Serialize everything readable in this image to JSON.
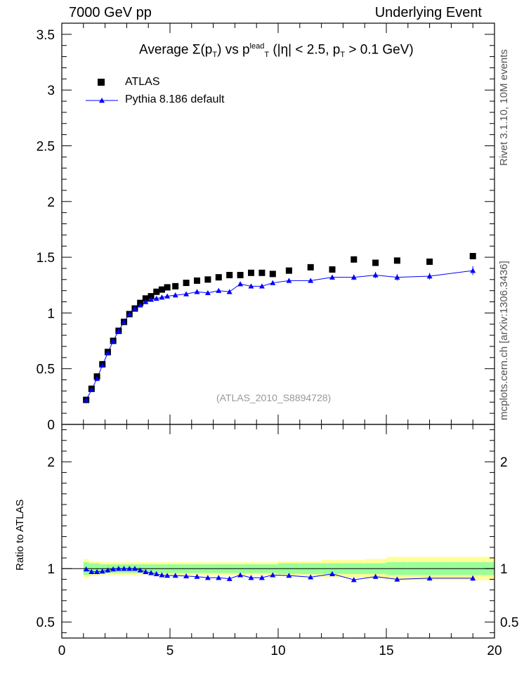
{
  "header": {
    "left": "7000 GeV pp",
    "right": "Underlying Event"
  },
  "side": {
    "rivet": "Rivet 3.1.10,  10M events",
    "mcplots": "mcplots.cern.ch [arXiv:1306.3436]"
  },
  "title": {
    "prefix": "Average ",
    "sigma": "Σ",
    "p1": "(p",
    "p1sub": "T",
    "p2": ") vs p",
    "p2sup": "lead",
    "p2sub": "T",
    "p3": " (|η| < 2.5, p",
    "p3sub": "T",
    "p4": " > 0.1 GeV)"
  },
  "legend": {
    "atlas": "ATLAS",
    "pythia": "Pythia 8.186 default"
  },
  "analysis_id": "(ATLAS_2010_S8894728)",
  "ratio_ylabel": "Ratio to ATLAS",
  "colors": {
    "data": "#000000",
    "mc": "#0000ff",
    "band_stat": "#99ff99",
    "band_total": "#ffff99"
  },
  "chart_data": [
    {
      "type": "scatter",
      "xlim": [
        0,
        20
      ],
      "ylim": [
        0,
        3.6
      ],
      "yticks": [
        0.5,
        1,
        1.5,
        2,
        2.5,
        3,
        3.5
      ],
      "ytick_labels": [
        "0.5",
        "1",
        "1.5",
        "2",
        "2.5",
        "3",
        "3.5"
      ],
      "ylabel_zero": "0",
      "series": [
        {
          "name": "ATLAS",
          "marker": "square",
          "x": [
            1.125,
            1.375,
            1.625,
            1.875,
            2.125,
            2.375,
            2.625,
            2.875,
            3.125,
            3.375,
            3.625,
            3.875,
            4.125,
            4.375,
            4.625,
            4.875,
            5.25,
            5.75,
            6.25,
            6.75,
            7.25,
            7.75,
            8.25,
            8.75,
            9.25,
            9.75,
            10.5,
            11.5,
            12.5,
            13.5,
            14.5,
            15.5,
            17.0,
            19.0
          ],
          "y": [
            0.22,
            0.32,
            0.43,
            0.54,
            0.65,
            0.75,
            0.84,
            0.92,
            0.99,
            1.04,
            1.09,
            1.13,
            1.15,
            1.19,
            1.21,
            1.23,
            1.24,
            1.27,
            1.29,
            1.3,
            1.32,
            1.34,
            1.34,
            1.36,
            1.36,
            1.35,
            1.38,
            1.41,
            1.39,
            1.48,
            1.45,
            1.47,
            1.46,
            1.51
          ]
        },
        {
          "name": "Pythia 8.186 default",
          "marker": "triangle",
          "x": [
            1.125,
            1.375,
            1.625,
            1.875,
            2.125,
            2.375,
            2.625,
            2.875,
            3.125,
            3.375,
            3.625,
            3.875,
            4.125,
            4.375,
            4.625,
            4.875,
            5.25,
            5.75,
            6.25,
            6.75,
            7.25,
            7.75,
            8.25,
            8.75,
            9.25,
            9.75,
            10.5,
            11.5,
            12.5,
            13.5,
            14.5,
            15.5,
            17.0,
            19.0
          ],
          "y": [
            0.22,
            0.31,
            0.41,
            0.53,
            0.64,
            0.75,
            0.84,
            0.92,
            0.99,
            1.04,
            1.07,
            1.1,
            1.12,
            1.13,
            1.14,
            1.15,
            1.16,
            1.17,
            1.19,
            1.18,
            1.2,
            1.19,
            1.26,
            1.24,
            1.24,
            1.27,
            1.29,
            1.29,
            1.32,
            1.32,
            1.34,
            1.32,
            1.33,
            1.38
          ],
          "err": [
            0.005,
            0.005,
            0.005,
            0.006,
            0.006,
            0.007,
            0.007,
            0.007,
            0.008,
            0.008,
            0.008,
            0.009,
            0.009,
            0.01,
            0.01,
            0.01,
            0.01,
            0.012,
            0.012,
            0.013,
            0.013,
            0.014,
            0.015,
            0.015,
            0.016,
            0.016,
            0.017,
            0.018,
            0.02,
            0.025,
            0.028,
            0.03,
            0.03,
            0.04
          ]
        }
      ]
    },
    {
      "type": "line",
      "xlim": [
        0,
        20
      ],
      "ylim": [
        0.35,
        2.35
      ],
      "ylabel": "Ratio to ATLAS",
      "yticks": [
        0.5,
        1,
        2
      ],
      "ytick_labels": [
        "0.5",
        "1",
        "2"
      ],
      "xticks": [
        0,
        5,
        10,
        15,
        20
      ],
      "xtick_labels": [
        "0",
        "5",
        "10",
        "15",
        "20"
      ],
      "bands": {
        "x_edges": [
          1.0,
          1.25,
          1.5,
          1.75,
          2.0,
          2.25,
          2.5,
          2.75,
          3.0,
          3.25,
          3.5,
          3.75,
          4.0,
          4.25,
          4.5,
          4.75,
          5.0,
          5.5,
          6.0,
          6.5,
          7.0,
          7.5,
          8.0,
          8.5,
          9.0,
          9.5,
          10.0,
          11.0,
          12.0,
          13.0,
          14.0,
          15.0,
          16.0,
          18.0,
          20.0
        ],
        "stat_half": [
          0.06,
          0.05,
          0.05,
          0.04,
          0.04,
          0.04,
          0.04,
          0.04,
          0.04,
          0.04,
          0.04,
          0.04,
          0.04,
          0.04,
          0.04,
          0.04,
          0.04,
          0.04,
          0.04,
          0.04,
          0.04,
          0.04,
          0.04,
          0.04,
          0.04,
          0.04,
          0.05,
          0.05,
          0.05,
          0.05,
          0.05,
          0.06,
          0.06,
          0.06
        ],
        "total_half": [
          0.09,
          0.07,
          0.07,
          0.06,
          0.06,
          0.06,
          0.06,
          0.06,
          0.06,
          0.06,
          0.06,
          0.06,
          0.06,
          0.06,
          0.06,
          0.06,
          0.06,
          0.06,
          0.06,
          0.06,
          0.06,
          0.06,
          0.06,
          0.06,
          0.06,
          0.06,
          0.07,
          0.07,
          0.08,
          0.08,
          0.09,
          0.11,
          0.11,
          0.11
        ]
      },
      "series": [
        {
          "name": "Pythia 8.186 default",
          "x": [
            1.125,
            1.375,
            1.625,
            1.875,
            2.125,
            2.375,
            2.625,
            2.875,
            3.125,
            3.375,
            3.625,
            3.875,
            4.125,
            4.375,
            4.625,
            4.875,
            5.25,
            5.75,
            6.25,
            6.75,
            7.25,
            7.75,
            8.25,
            8.75,
            9.25,
            9.75,
            10.5,
            11.5,
            12.5,
            13.5,
            14.5,
            15.5,
            17.0,
            19.0
          ],
          "y": [
            0.995,
            0.97,
            0.97,
            0.975,
            0.985,
            0.995,
            1.0,
            1.0,
            1.0,
            1.0,
            0.985,
            0.97,
            0.96,
            0.95,
            0.94,
            0.935,
            0.935,
            0.93,
            0.925,
            0.915,
            0.915,
            0.905,
            0.94,
            0.915,
            0.915,
            0.94,
            0.935,
            0.92,
            0.95,
            0.895,
            0.925,
            0.9,
            0.91,
            0.91
          ],
          "err": [
            0.02,
            0.012,
            0.01,
            0.01,
            0.01,
            0.01,
            0.01,
            0.01,
            0.01,
            0.01,
            0.01,
            0.01,
            0.01,
            0.01,
            0.01,
            0.01,
            0.01,
            0.01,
            0.01,
            0.01,
            0.01,
            0.01,
            0.012,
            0.012,
            0.012,
            0.012,
            0.013,
            0.013,
            0.015,
            0.018,
            0.02,
            0.022,
            0.022,
            0.025
          ]
        }
      ]
    }
  ]
}
